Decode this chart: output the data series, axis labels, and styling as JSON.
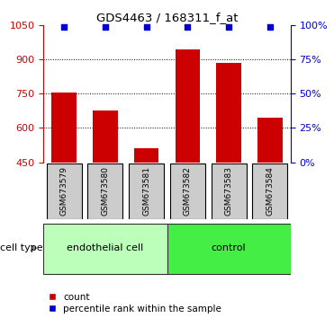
{
  "title": "GDS4463 / 168311_f_at",
  "categories": [
    "GSM673579",
    "GSM673580",
    "GSM673581",
    "GSM673582",
    "GSM673583",
    "GSM673584"
  ],
  "counts": [
    755,
    675,
    510,
    945,
    885,
    645
  ],
  "percentile_ranks": [
    99,
    99,
    99,
    99,
    99,
    99
  ],
  "ylim_left": [
    450,
    1050
  ],
  "ylim_right": [
    0,
    100
  ],
  "yticks_left": [
    450,
    600,
    750,
    900,
    1050
  ],
  "yticks_right": [
    0,
    25,
    50,
    75,
    100
  ],
  "bar_color": "#cc0000",
  "dot_color": "#0000cc",
  "groups": [
    {
      "label": "endothelial cell",
      "indices": [
        0,
        1,
        2
      ],
      "color": "#bbffbb"
    },
    {
      "label": "control",
      "indices": [
        3,
        4,
        5
      ],
      "color": "#44ee44"
    }
  ],
  "cell_type_label": "cell type",
  "legend_count_label": "count",
  "legend_percentile_label": "percentile rank within the sample",
  "background_color": "#ffffff",
  "grid_dotted_ticks": [
    600,
    750,
    900
  ],
  "xticklabel_box_color": "#cccccc",
  "xticklabel_box_edge": "#000000"
}
